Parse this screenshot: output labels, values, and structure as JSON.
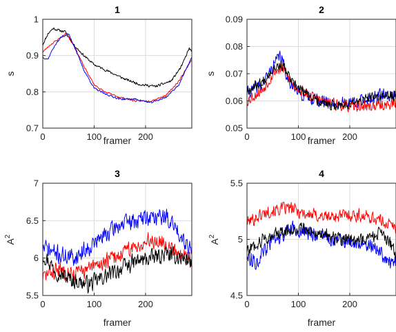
{
  "chart_data": [
    {
      "type": "line",
      "title": "1",
      "xlabel": "framer",
      "ylabel": "s",
      "ylabel_sup": "",
      "xlim": [
        0,
        290
      ],
      "ylim": [
        0.7,
        1.0
      ],
      "xticks": [
        0,
        100,
        200
      ],
      "xtick_labels": [
        "0",
        "100",
        "200"
      ],
      "yticks": [
        0.7,
        0.8,
        0.9,
        1.0
      ],
      "ytick_labels": [
        "0.7",
        "0.8",
        "0.9",
        "1"
      ],
      "grid": true,
      "series": [
        {
          "color": "#000000",
          "noise": 0.004,
          "seed": 11,
          "points": [
            [
              0,
              0.93
            ],
            [
              10,
              0.96
            ],
            [
              20,
              0.975
            ],
            [
              30,
              0.97
            ],
            [
              45,
              0.965
            ],
            [
              60,
              0.93
            ],
            [
              80,
              0.9
            ],
            [
              100,
              0.875
            ],
            [
              130,
              0.855
            ],
            [
              160,
              0.835
            ],
            [
              190,
              0.82
            ],
            [
              220,
              0.815
            ],
            [
              250,
              0.83
            ],
            [
              270,
              0.87
            ],
            [
              285,
              0.92
            ],
            [
              290,
              0.91
            ]
          ]
        },
        {
          "color": "#ff0000",
          "noise": 0.003,
          "seed": 23,
          "points": [
            [
              0,
              0.91
            ],
            [
              15,
              0.93
            ],
            [
              30,
              0.945
            ],
            [
              45,
              0.96
            ],
            [
              60,
              0.93
            ],
            [
              80,
              0.87
            ],
            [
              100,
              0.82
            ],
            [
              120,
              0.8
            ],
            [
              150,
              0.785
            ],
            [
              180,
              0.775
            ],
            [
              210,
              0.775
            ],
            [
              240,
              0.79
            ],
            [
              265,
              0.83
            ],
            [
              290,
              0.89
            ]
          ]
        },
        {
          "color": "#0000ff",
          "noise": 0.003,
          "seed": 37,
          "points": [
            [
              0,
              0.895
            ],
            [
              10,
              0.89
            ],
            [
              20,
              0.92
            ],
            [
              35,
              0.95
            ],
            [
              50,
              0.96
            ],
            [
              60,
              0.93
            ],
            [
              80,
              0.86
            ],
            [
              100,
              0.81
            ],
            [
              120,
              0.795
            ],
            [
              150,
              0.78
            ],
            [
              180,
              0.78
            ],
            [
              210,
              0.77
            ],
            [
              240,
              0.785
            ],
            [
              265,
              0.82
            ],
            [
              290,
              0.895
            ]
          ]
        }
      ]
    },
    {
      "type": "line",
      "title": "2",
      "xlabel": "framer",
      "ylabel": "s",
      "ylabel_sup": "",
      "xlim": [
        0,
        290
      ],
      "ylim": [
        0.05,
        0.09
      ],
      "xticks": [
        0,
        100,
        200
      ],
      "xtick_labels": [
        "0",
        "100",
        "200"
      ],
      "yticks": [
        0.05,
        0.06,
        0.07,
        0.08,
        0.09
      ],
      "ytick_labels": [
        "0.05",
        "0.06",
        "0.07",
        "0.08",
        "0.09"
      ],
      "grid": true,
      "series": [
        {
          "color": "#0000ff",
          "noise": 0.0028,
          "seed": 41,
          "points": [
            [
              0,
              0.063
            ],
            [
              30,
              0.066
            ],
            [
              55,
              0.074
            ],
            [
              65,
              0.077
            ],
            [
              80,
              0.068
            ],
            [
              100,
              0.063
            ],
            [
              140,
              0.06
            ],
            [
              180,
              0.059
            ],
            [
              220,
              0.06
            ],
            [
              260,
              0.062
            ],
            [
              290,
              0.062
            ]
          ]
        },
        {
          "color": "#ff0000",
          "noise": 0.0025,
          "seed": 53,
          "points": [
            [
              0,
              0.06
            ],
            [
              30,
              0.064
            ],
            [
              55,
              0.071
            ],
            [
              70,
              0.072
            ],
            [
              90,
              0.066
            ],
            [
              120,
              0.062
            ],
            [
              160,
              0.059
            ],
            [
              200,
              0.058
            ],
            [
              240,
              0.058
            ],
            [
              290,
              0.059
            ]
          ]
        },
        {
          "color": "#000000",
          "noise": 0.0023,
          "seed": 67,
          "points": [
            [
              0,
              0.064
            ],
            [
              30,
              0.067
            ],
            [
              55,
              0.073
            ],
            [
              70,
              0.073
            ],
            [
              90,
              0.066
            ],
            [
              120,
              0.062
            ],
            [
              160,
              0.058
            ],
            [
              200,
              0.059
            ],
            [
              240,
              0.061
            ],
            [
              290,
              0.062
            ]
          ]
        }
      ]
    },
    {
      "type": "line",
      "title": "3",
      "xlabel": "framer",
      "ylabel": "A",
      "ylabel_sup": "2",
      "xlim": [
        0,
        290
      ],
      "ylim": [
        5.5,
        7.0
      ],
      "xticks": [
        0,
        100,
        200
      ],
      "xtick_labels": [
        "0",
        "100",
        "200"
      ],
      "yticks": [
        5.5,
        6.0,
        6.5,
        7.0
      ],
      "ytick_labels": [
        "5.5",
        "6",
        "6.5",
        "7"
      ],
      "grid": true,
      "series": [
        {
          "color": "#0000ff",
          "noise": 0.14,
          "seed": 71,
          "points": [
            [
              0,
              6.15
            ],
            [
              30,
              6.05
            ],
            [
              60,
              6.0
            ],
            [
              90,
              6.15
            ],
            [
              120,
              6.3
            ],
            [
              150,
              6.45
            ],
            [
              180,
              6.5
            ],
            [
              210,
              6.55
            ],
            [
              240,
              6.55
            ],
            [
              270,
              6.3
            ],
            [
              290,
              6.1
            ]
          ]
        },
        {
          "color": "#ff0000",
          "noise": 0.13,
          "seed": 83,
          "points": [
            [
              0,
              5.75
            ],
            [
              30,
              5.85
            ],
            [
              60,
              5.8
            ],
            [
              90,
              5.85
            ],
            [
              120,
              5.95
            ],
            [
              150,
              6.05
            ],
            [
              180,
              6.15
            ],
            [
              210,
              6.25
            ],
            [
              240,
              6.2
            ],
            [
              270,
              6.05
            ],
            [
              290,
              6.0
            ]
          ]
        },
        {
          "color": "#000000",
          "noise": 0.13,
          "seed": 97,
          "points": [
            [
              0,
              6.05
            ],
            [
              30,
              5.8
            ],
            [
              60,
              5.7
            ],
            [
              90,
              5.65
            ],
            [
              120,
              5.75
            ],
            [
              150,
              5.85
            ],
            [
              180,
              5.95
            ],
            [
              210,
              6.0
            ],
            [
              240,
              6.05
            ],
            [
              270,
              6.0
            ],
            [
              290,
              5.95
            ]
          ]
        }
      ]
    },
    {
      "type": "line",
      "title": "4",
      "xlabel": "framer",
      "ylabel": "A",
      "ylabel_sup": "2",
      "xlim": [
        0,
        290
      ],
      "ylim": [
        4.5,
        5.5
      ],
      "xticks": [
        0,
        100,
        200
      ],
      "xtick_labels": [
        "0",
        "100",
        "200"
      ],
      "yticks": [
        4.5,
        5.0,
        5.5
      ],
      "ytick_labels": [
        "4.5",
        "5",
        "5.5"
      ],
      "grid": true,
      "series": [
        {
          "color": "#ff0000",
          "noise": 0.07,
          "seed": 101,
          "points": [
            [
              0,
              5.15
            ],
            [
              40,
              5.25
            ],
            [
              80,
              5.28
            ],
            [
              120,
              5.22
            ],
            [
              160,
              5.2
            ],
            [
              200,
              5.22
            ],
            [
              240,
              5.2
            ],
            [
              270,
              5.15
            ],
            [
              290,
              5.1
            ]
          ]
        },
        {
          "color": "#0000ff",
          "noise": 0.08,
          "seed": 113,
          "points": [
            [
              0,
              4.85
            ],
            [
              20,
              4.8
            ],
            [
              50,
              5.0
            ],
            [
              90,
              5.1
            ],
            [
              130,
              5.05
            ],
            [
              170,
              5.0
            ],
            [
              210,
              4.95
            ],
            [
              250,
              4.95
            ],
            [
              270,
              4.8
            ],
            [
              290,
              4.8
            ]
          ]
        },
        {
          "color": "#000000",
          "noise": 0.07,
          "seed": 127,
          "points": [
            [
              0,
              4.9
            ],
            [
              30,
              5.0
            ],
            [
              60,
              5.05
            ],
            [
              100,
              5.1
            ],
            [
              140,
              5.05
            ],
            [
              180,
              5.0
            ],
            [
              220,
              5.0
            ],
            [
              260,
              5.05
            ],
            [
              280,
              4.95
            ],
            [
              290,
              4.85
            ]
          ]
        }
      ]
    }
  ]
}
